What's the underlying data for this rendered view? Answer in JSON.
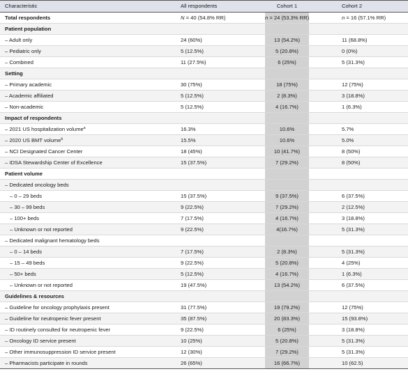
{
  "header": [
    "Characteristic",
    "All respondents",
    "Cohort 1",
    "Cohort 2"
  ],
  "total": {
    "label": "Total respondents",
    "all_n": "40",
    "all_rest": " (54.8% RR)",
    "c1_n": "24",
    "c1_rest": " (53.3% RR)",
    "c2_n": "16",
    "c2_rest": " (57.1% RR)"
  },
  "rows": [
    {
      "type": "section",
      "label": "Patient population"
    },
    {
      "type": "item",
      "label": "– Adult only",
      "all": "24 (60%)",
      "c1": "13 (54.2%)",
      "c2": "11 (68.8%)"
    },
    {
      "type": "item",
      "label": "– Pediatric only",
      "all": "5 (12.5%)",
      "c1": "5 (20.8%)",
      "c2": "0 (0%)"
    },
    {
      "type": "item",
      "label": "– Combined",
      "all": "11 (27.5%)",
      "c1": "6 (25%)",
      "c2": "5 (31.3%)"
    },
    {
      "type": "section",
      "label": "Setting"
    },
    {
      "type": "item",
      "label": "– Primary academic",
      "all": "30 (75%)",
      "c1": "18 (75%)",
      "c2": "12 (75%)"
    },
    {
      "type": "item",
      "label": "– Academic affiliated",
      "all": "5 (12.5%)",
      "c1": "2 (8.3%)",
      "c2": "3 (18.8%)"
    },
    {
      "type": "item",
      "label": "– Non-academic",
      "all": "5 (12.5%)",
      "c1": "4 (16.7%)",
      "c2": "1 (6.3%)"
    },
    {
      "type": "section",
      "label": "Impact of respondents"
    },
    {
      "type": "item",
      "label": "– 2021 US hospitalization volume",
      "sup": "a",
      "all": "16.3%",
      "c1": "10.6%",
      "c2": "5.7%"
    },
    {
      "type": "item",
      "label": "– 2020 US BMT volume",
      "sup": "b",
      "all": "15.5%",
      "c1": "10.6%",
      "c2": "5.0%"
    },
    {
      "type": "item",
      "label": "– NCI Designated Cancer Center",
      "all": "18 (45%)",
      "c1": "10 (41.7%)",
      "c2": "8 (50%)"
    },
    {
      "type": "item",
      "label": "– IDSA Stewardship Center of Excellence",
      "all": "15 (37.5%)",
      "c1": "7 (29.2%)",
      "c2": "8 (50%)"
    },
    {
      "type": "section",
      "label": "Patient volume"
    },
    {
      "type": "item",
      "label": "– Dedicated oncology beds",
      "all": "",
      "c1": "",
      "c2": ""
    },
    {
      "type": "sub",
      "label": "– 0 – 29 beds",
      "all": "15 (37.5%)",
      "c1": "9 (37.5%)",
      "c2": "6 (37.5%)"
    },
    {
      "type": "sub",
      "label": "– 30 – 99 beds",
      "all": "9 (22.5%)",
      "c1": "7 (29.2%)",
      "c2": "2 (12.5%)"
    },
    {
      "type": "sub",
      "label": "– 100+ beds",
      "all": "7 (17.5%)",
      "c1": "4 (16.7%)",
      "c2": "3 (18.8%)"
    },
    {
      "type": "sub",
      "label": "– Unknown or not reported",
      "all": "9 (22.5%)",
      "c1": "4(16.7%)",
      "c2": "5 (31.3%)"
    },
    {
      "type": "item",
      "label": "– Dedicated malignant hematology beds",
      "all": "",
      "c1": "",
      "c2": ""
    },
    {
      "type": "sub",
      "label": "– 0 – 14 beds",
      "all": "7 (17.5%)",
      "c1": "2 (8.3%)",
      "c2": "5 (31.3%)"
    },
    {
      "type": "sub",
      "label": "– 15 – 49 beds",
      "all": "9 (22.5%)",
      "c1": "5 (20.8%)",
      "c2": "4 (25%)"
    },
    {
      "type": "sub",
      "label": "– 50+ beds",
      "all": "5 (12.5%)",
      "c1": "4 (16.7%)",
      "c2": "1 (6.3%)"
    },
    {
      "type": "sub",
      "label": "– Unknown or not reported",
      "all": "19 (47.5%)",
      "c1": "13 (54.2%)",
      "c2": "6 (37.5%)"
    },
    {
      "type": "section",
      "label": "Guidelines & resources"
    },
    {
      "type": "item",
      "label": "– Guideline for oncology prophylaxis present",
      "all": "31 (77.5%)",
      "c1": "19 (79.2%)",
      "c2": "12 (75%)"
    },
    {
      "type": "item",
      "label": "– Guideline for neutropenic fever present",
      "all": "35 (87.5%)",
      "c1": "20 (83.3%)",
      "c2": "15 (93.8%)"
    },
    {
      "type": "item",
      "label": "– ID routinely consulted for neutropenic fever",
      "all": "9 (22.5%)",
      "c1": "6 (25%)",
      "c2": "3 (18.8%)"
    },
    {
      "type": "item",
      "label": "– Oncology ID service present",
      "all": "10 (25%)",
      "c1": "5 (20.8%)",
      "c2": "5 (31.3%)"
    },
    {
      "type": "item",
      "label": "– Other immunosuppression ID service present",
      "all": "12 (30%)",
      "c1": "7 (29.2%)",
      "c2": "5 (31.3%)"
    },
    {
      "type": "item",
      "label": "– Pharmacists participate in rounds",
      "all": "26 (65%)",
      "c1": "16 (66.7%)",
      "c2": "10 (62.5)"
    }
  ]
}
